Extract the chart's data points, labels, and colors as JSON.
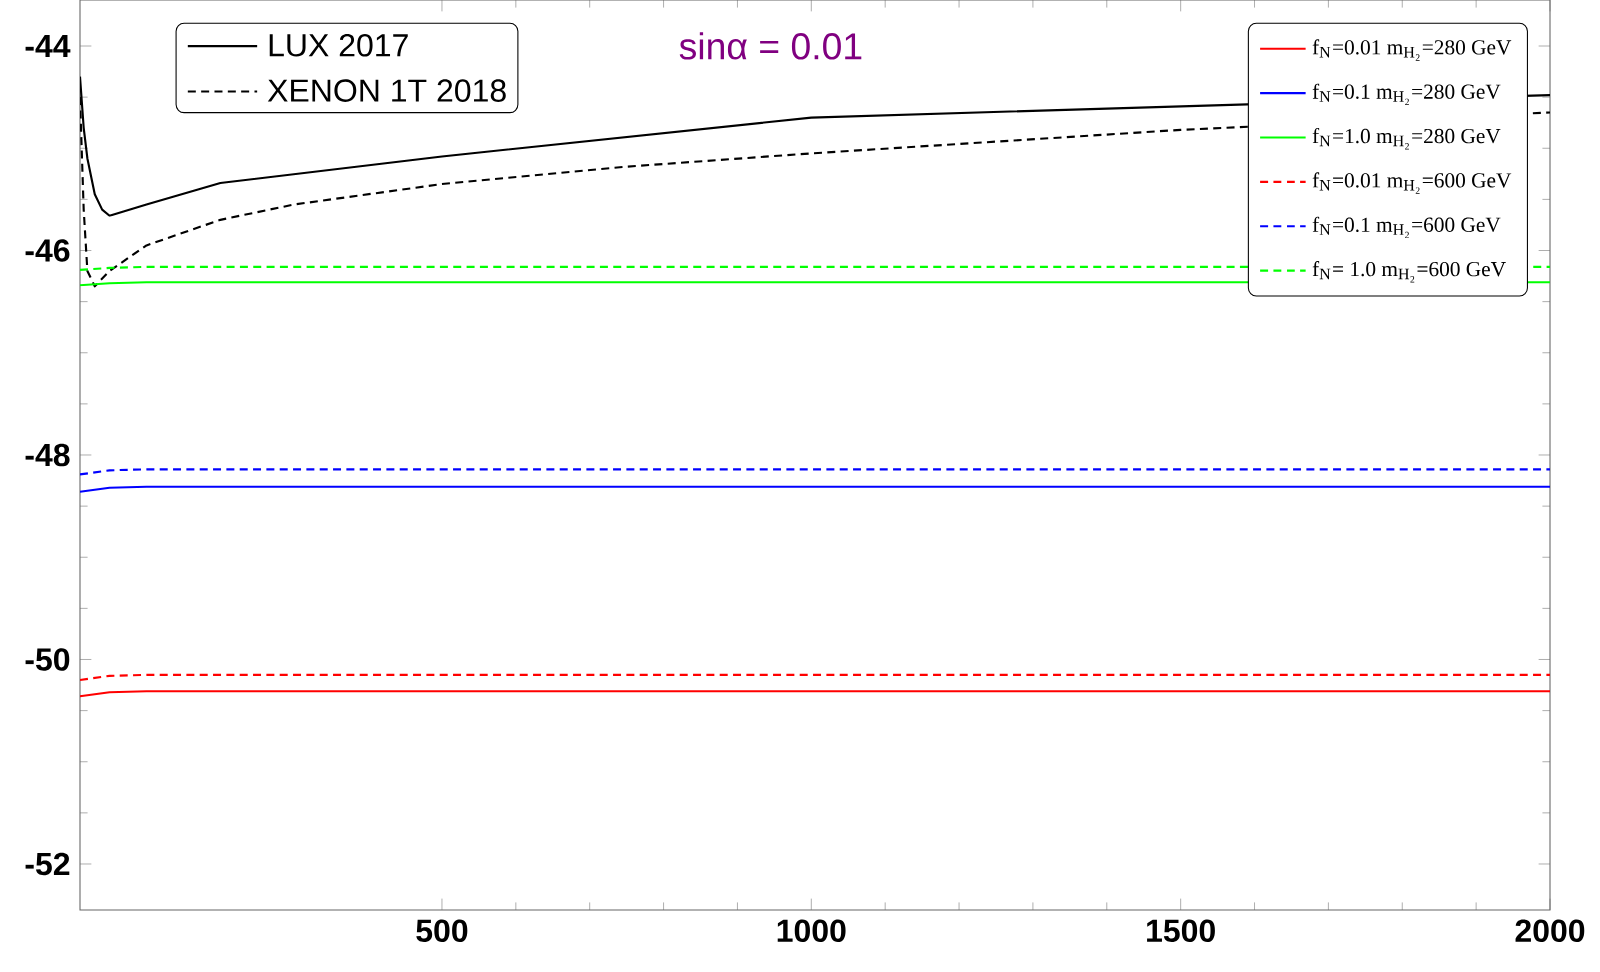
{
  "chart_data": {
    "type": "line",
    "title": "sinα = 0.01",
    "xlim": [
      10,
      2000
    ],
    "ylim": [
      -52.45,
      -43.55
    ],
    "xticks": [
      500,
      1000,
      1500,
      2000
    ],
    "yticks": [
      -52,
      -50,
      -48,
      -46,
      -44
    ],
    "legend": "top right",
    "series": [
      {
        "name": "LUX 2017",
        "color": "#000000",
        "line_style": "solid",
        "x": [
          10,
          15,
          20,
          30,
          40,
          50,
          100,
          200,
          500,
          1000,
          2000
        ],
        "values": [
          -44.3,
          -44.8,
          -45.1,
          -45.45,
          -45.6,
          -45.66,
          -45.55,
          -45.34,
          -45.08,
          -44.7,
          -44.48
        ]
      },
      {
        "name": "XENON 1T 2018",
        "color": "#000000",
        "line_style": "dashed",
        "x": [
          10,
          15,
          20,
          30,
          50,
          100,
          200,
          300,
          500,
          750,
          1000,
          1500,
          2000
        ],
        "values": [
          -44.5,
          -45.6,
          -46.2,
          -46.35,
          -46.2,
          -45.95,
          -45.7,
          -45.55,
          -45.35,
          -45.18,
          -45.05,
          -44.82,
          -44.65
        ]
      },
      {
        "name": "f$_{N}$=0.01  m$_{H₂}$=280 GeV",
        "color": "#ff0000",
        "line_style": "solid",
        "x": [
          10,
          50,
          100,
          2000
        ],
        "values": [
          -50.36,
          -50.32,
          -50.31,
          -50.31
        ]
      },
      {
        "name": "f$_{N}$=0.1  m$_{H₂}$=280 GeV",
        "color": "#0000ff",
        "line_style": "solid",
        "x": [
          10,
          50,
          100,
          2000
        ],
        "values": [
          -48.36,
          -48.32,
          -48.31,
          -48.31
        ]
      },
      {
        "name": "f$_{N}$=1.0  m$_{H₂}$=280 GeV",
        "color": "#00ff00",
        "line_style": "solid",
        "x": [
          10,
          50,
          100,
          2000
        ],
        "values": [
          -46.34,
          -46.32,
          -46.31,
          -46.31
        ]
      },
      {
        "name": "f$_{N}$=0.01  m$_{H₂}$=600 GeV",
        "color": "#ff0000",
        "line_style": "dashed",
        "x": [
          10,
          50,
          100,
          2000
        ],
        "values": [
          -50.2,
          -50.16,
          -50.15,
          -50.15
        ]
      },
      {
        "name": "f$_{N}$=0.1  m$_{H₂}$=600 GeV",
        "color": "#0000ff",
        "line_style": "dashed",
        "x": [
          10,
          50,
          100,
          2000
        ],
        "values": [
          -48.19,
          -48.15,
          -48.14,
          -48.14
        ]
      },
      {
        "name": "f$_{N}$= 1.0  m$_{H₂}$=600 GeV",
        "color": "#00ff00",
        "line_style": "dashed",
        "x": [
          10,
          50,
          100,
          2000
        ],
        "values": [
          -46.19,
          -46.17,
          -46.16,
          -46.16
        ]
      }
    ]
  }
}
